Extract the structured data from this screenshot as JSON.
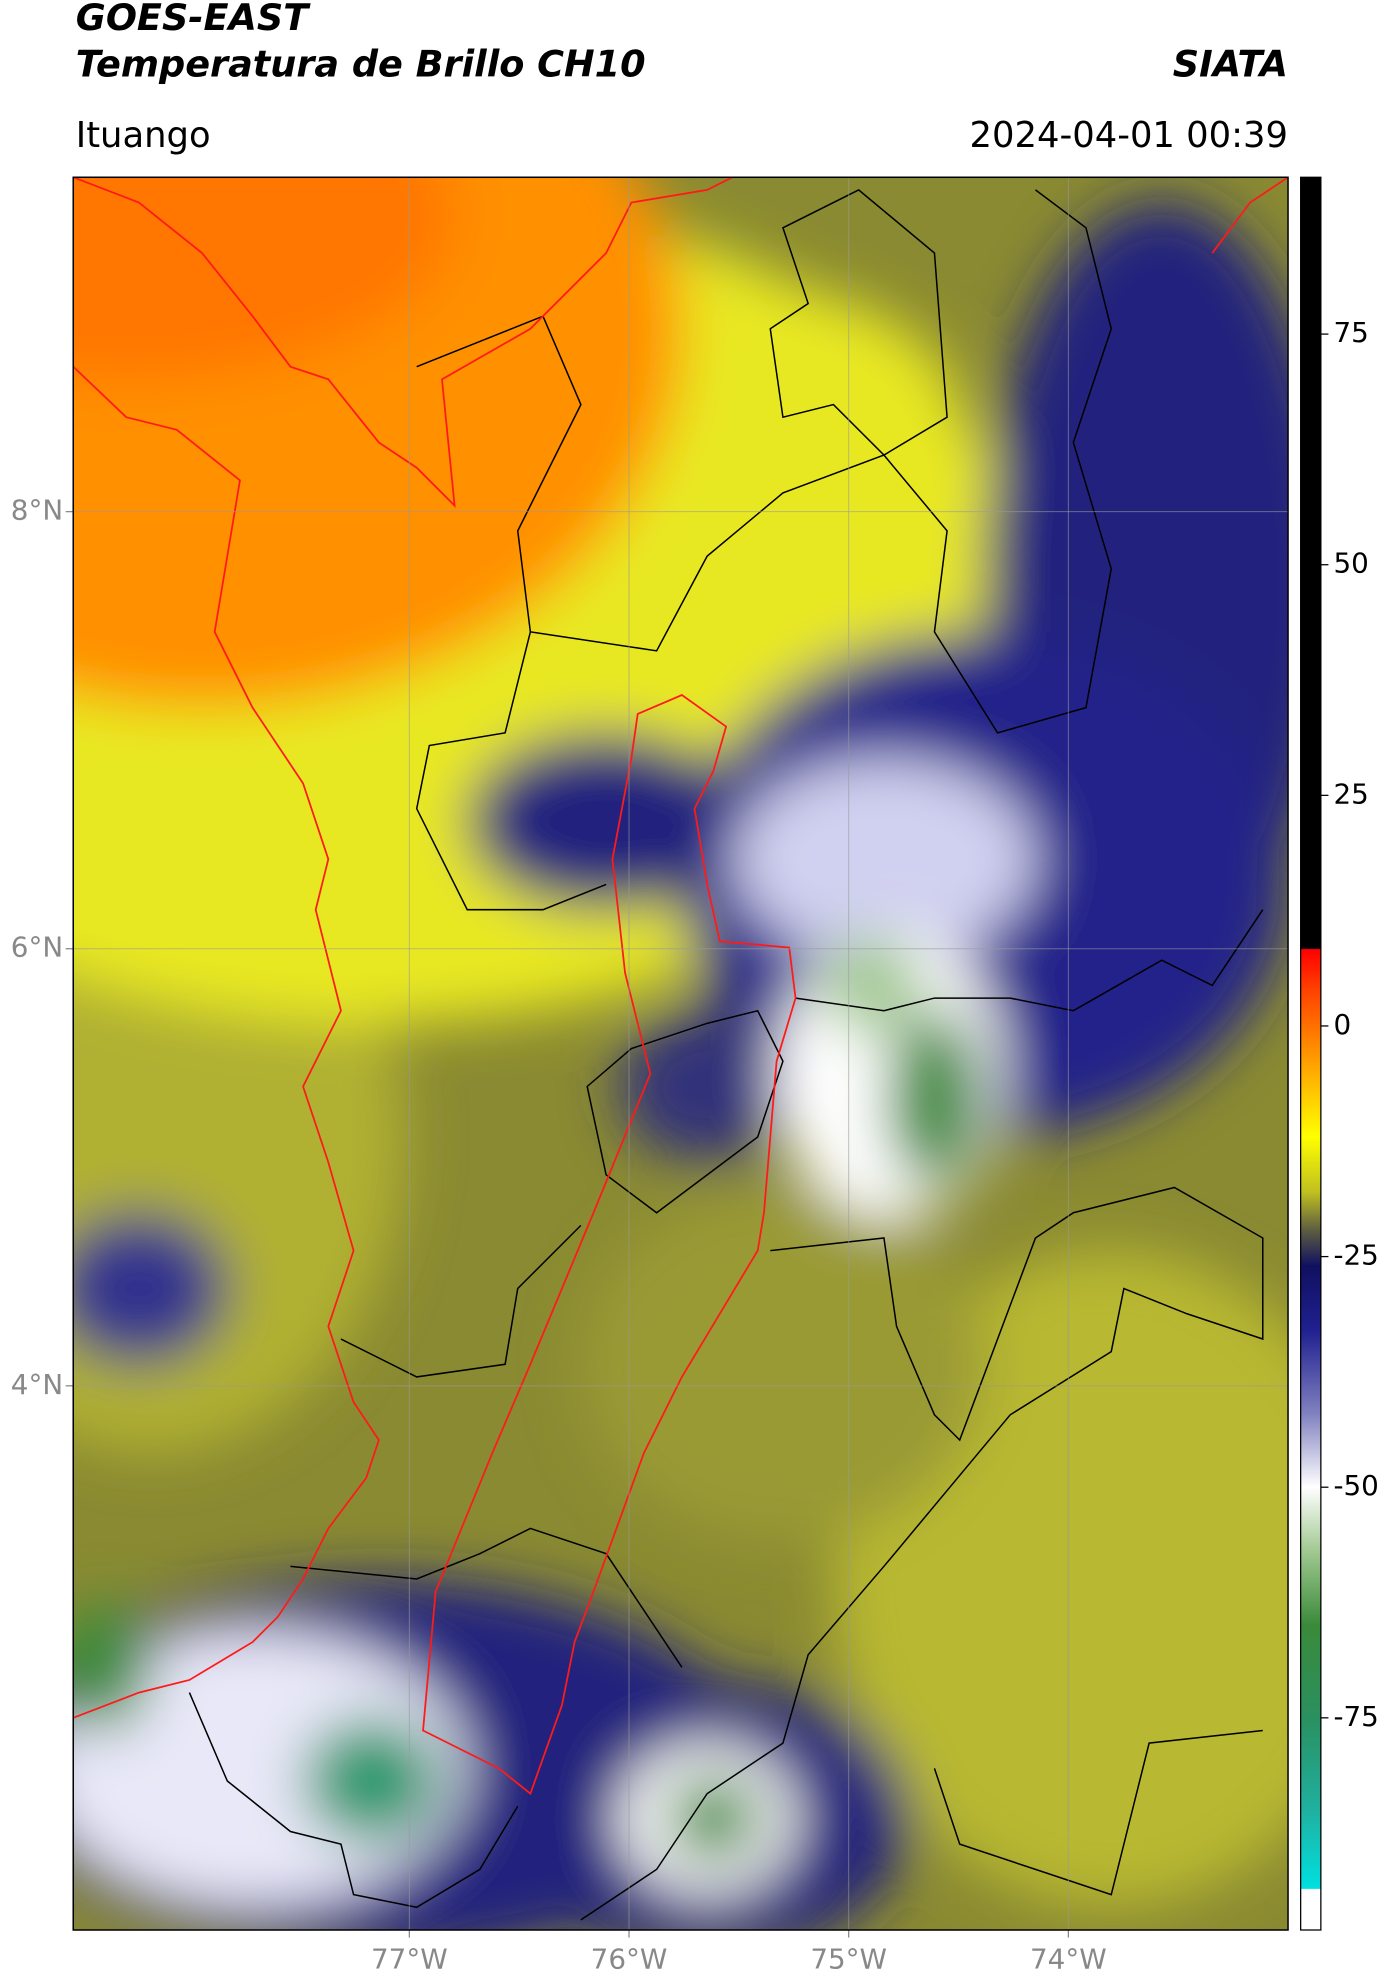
{
  "chart_data": {
    "type": "map",
    "title": "GOES-EAST",
    "subtitle": "Temperatura de Brillo CH10",
    "source": "SIATA",
    "location": "Ituango",
    "datetime": "2024-04-01 00:39",
    "xlim": [
      -78.53,
      -73.0
    ],
    "ylim": [
      1.51,
      9.53
    ],
    "xticks": [
      {
        "value": -77,
        "label": "77°W"
      },
      {
        "value": -76,
        "label": "76°W"
      },
      {
        "value": -75,
        "label": "75°W"
      },
      {
        "value": -74,
        "label": "74°W"
      }
    ],
    "yticks": [
      {
        "value": 4,
        "label": "4°N"
      },
      {
        "value": 6,
        "label": "6°N"
      },
      {
        "value": 8,
        "label": "8°N"
      }
    ],
    "grid": true,
    "colorbar": {
      "lim": [
        -98,
        92
      ],
      "ticks": [
        -75,
        -50,
        -25,
        0,
        25,
        50,
        75
      ],
      "colormap": [
        {
          "value": -98,
          "color": "#ffffff"
        },
        {
          "value": -93.6,
          "color": "#ffffff"
        },
        {
          "value": -93.5,
          "color": "#00e0e0"
        },
        {
          "value": -85,
          "color": "#20b0a0"
        },
        {
          "value": -75,
          "color": "#2a9060"
        },
        {
          "value": -65,
          "color": "#3a8a3a"
        },
        {
          "value": -57,
          "color": "#a0c890"
        },
        {
          "value": -50,
          "color": "#ffffff"
        },
        {
          "value": -42,
          "color": "#8080c0"
        },
        {
          "value": -33,
          "color": "#202090"
        },
        {
          "value": -26,
          "color": "#101060"
        },
        {
          "value": -22,
          "color": "#606040"
        },
        {
          "value": -18,
          "color": "#c0c020"
        },
        {
          "value": -12,
          "color": "#ffff00"
        },
        {
          "value": -4,
          "color": "#ffa000"
        },
        {
          "value": 4,
          "color": "#ff4000"
        },
        {
          "value": 8.3,
          "color": "#ff0000"
        },
        {
          "value": 8.4,
          "color": "#000000"
        },
        {
          "value": 92,
          "color": "#000000"
        }
      ]
    }
  }
}
